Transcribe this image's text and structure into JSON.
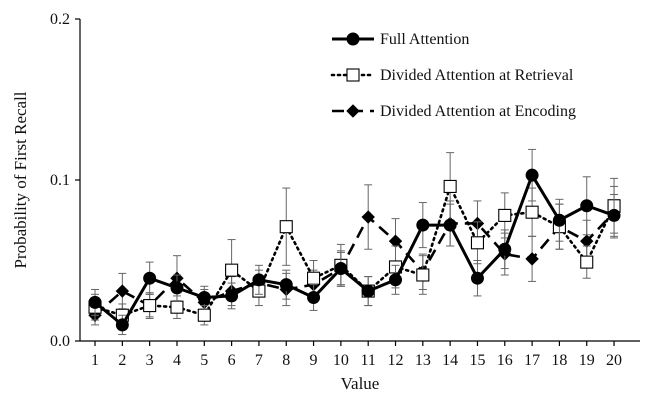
{
  "chart_data": {
    "type": "line",
    "xlabel": "Value",
    "ylabel": "Probability of First Recall",
    "ylim": [
      0,
      0.2
    ],
    "yticks": [
      "0.0",
      "0.1",
      "0.2"
    ],
    "y_tick_values": [
      0,
      0.1,
      0.2
    ],
    "x": [
      1,
      2,
      3,
      4,
      5,
      6,
      7,
      8,
      9,
      10,
      11,
      12,
      13,
      14,
      15,
      16,
      17,
      18,
      19,
      20
    ],
    "legend_position": "top-right",
    "series": [
      {
        "name": "Full Attention",
        "style": "solid",
        "marker": "filled-circle",
        "color": "#000000",
        "values": [
          0.024,
          0.01,
          0.039,
          0.033,
          0.027,
          0.028,
          0.038,
          0.035,
          0.027,
          0.045,
          0.031,
          0.038,
          0.072,
          0.072,
          0.039,
          0.057,
          0.103,
          0.075,
          0.084,
          0.078
        ],
        "error": [
          0.008,
          0.006,
          0.01,
          0.008,
          0.007,
          0.008,
          0.009,
          0.009,
          0.008,
          0.01,
          0.009,
          0.009,
          0.014,
          0.013,
          0.011,
          0.012,
          0.016,
          0.013,
          0.018,
          0.013
        ]
      },
      {
        "name": "Divided Attention at Retrieval",
        "style": "dotted",
        "marker": "open-square",
        "color": "#000000",
        "values": [
          0.021,
          0.016,
          0.022,
          0.021,
          0.016,
          0.044,
          0.031,
          0.071,
          0.039,
          0.047,
          0.031,
          0.046,
          0.041,
          0.096,
          0.061,
          0.078,
          0.08,
          0.071,
          0.049,
          0.084
        ],
        "error": [
          0.008,
          0.007,
          0.007,
          0.007,
          0.006,
          0.019,
          0.009,
          0.024,
          0.011,
          0.013,
          0.009,
          0.013,
          0.012,
          0.021,
          0.013,
          0.014,
          0.015,
          0.014,
          0.01,
          0.017
        ]
      },
      {
        "name": "Divided Attention at Encoding",
        "style": "dashed",
        "marker": "filled-diamond",
        "color": "#000000",
        "values": [
          0.016,
          0.031,
          0.022,
          0.039,
          0.024,
          0.031,
          0.036,
          0.032,
          0.035,
          0.045,
          0.077,
          0.062,
          0.043,
          0.073,
          0.073,
          0.054,
          0.051,
          0.071,
          0.062,
          0.08
        ],
        "error": [
          0.006,
          0.011,
          0.008,
          0.014,
          0.008,
          0.009,
          0.008,
          0.01,
          0.009,
          0.011,
          0.02,
          0.014,
          0.011,
          0.014,
          0.014,
          0.013,
          0.014,
          0.014,
          0.013,
          0.016
        ]
      }
    ]
  }
}
